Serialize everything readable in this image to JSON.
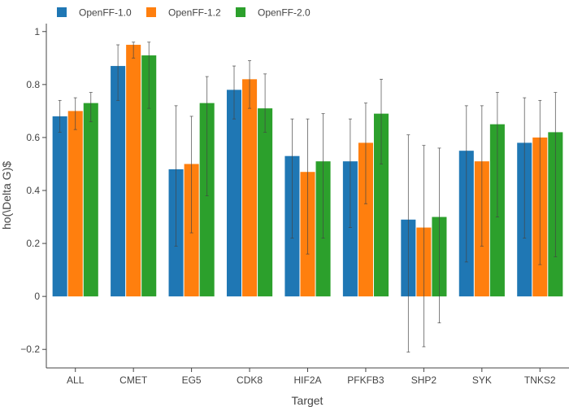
{
  "chart_data": {
    "type": "bar",
    "xlabel": "Target",
    "ylabel": "ho(\\Delta G)$",
    "ylim": [
      -0.27,
      1.03
    ],
    "yticks": [
      -0.2,
      0,
      0.2,
      0.4,
      0.6,
      0.8,
      1
    ],
    "ytick_labels": [
      "−0.2",
      "0",
      "0.2",
      "0.4",
      "0.6",
      "0.8",
      "1"
    ],
    "grid": false,
    "legend_position": "top-left",
    "categories": [
      "ALL",
      "CMET",
      "EG5",
      "CDK8",
      "HIF2A",
      "PFKFB3",
      "SHP2",
      "SYK",
      "TNKS2"
    ],
    "series": [
      {
        "name": "OpenFF-1.0",
        "color": "#1f77b4",
        "values": [
          0.68,
          0.87,
          0.48,
          0.78,
          0.53,
          0.51,
          0.29,
          0.55,
          0.58
        ],
        "err_low": [
          0.62,
          0.74,
          0.19,
          0.67,
          0.22,
          0.26,
          -0.21,
          0.13,
          0.22
        ],
        "err_high": [
          0.74,
          0.95,
          0.72,
          0.87,
          0.67,
          0.67,
          0.61,
          0.72,
          0.75
        ]
      },
      {
        "name": "OpenFF-1.2",
        "color": "#ff7f0e",
        "values": [
          0.7,
          0.95,
          0.5,
          0.82,
          0.47,
          0.58,
          0.26,
          0.51,
          0.6
        ],
        "err_low": [
          0.63,
          0.9,
          0.24,
          0.71,
          0.16,
          0.35,
          -0.19,
          0.19,
          0.12
        ],
        "err_high": [
          0.75,
          0.96,
          0.68,
          0.89,
          0.67,
          0.73,
          0.57,
          0.72,
          0.74
        ]
      },
      {
        "name": "OpenFF-2.0",
        "color": "#2ca02c",
        "values": [
          0.73,
          0.91,
          0.73,
          0.71,
          0.51,
          0.69,
          0.3,
          0.65,
          0.62
        ],
        "err_low": [
          0.66,
          0.71,
          0.38,
          0.62,
          0.22,
          0.5,
          -0.1,
          0.3,
          0.15
        ],
        "err_high": [
          0.77,
          0.96,
          0.83,
          0.84,
          0.69,
          0.82,
          0.56,
          0.77,
          0.77
        ]
      }
    ]
  }
}
